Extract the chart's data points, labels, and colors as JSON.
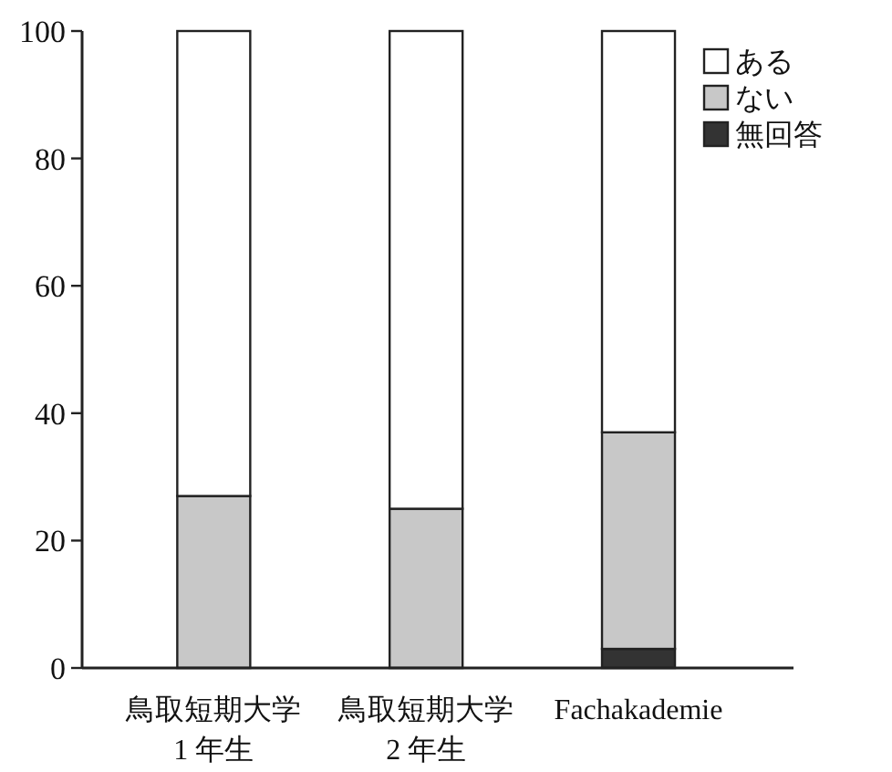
{
  "chart_data": {
    "type": "bar",
    "stacked": true,
    "categories": [
      "鳥取短期大学 1 年生",
      "鳥取短期大学 2 年生",
      "Fachakademie"
    ],
    "series": [
      {
        "name": "無回答",
        "color": "#333333",
        "values": [
          0,
          0,
          3
        ]
      },
      {
        "name": "ない",
        "color": "#c8c8c8",
        "values": [
          27,
          25,
          34
        ]
      },
      {
        "name": "ある",
        "color": "#ffffff",
        "values": [
          73,
          75,
          63
        ]
      }
    ],
    "ylim": [
      0,
      100
    ],
    "yticks": [
      0,
      20,
      40,
      60,
      80,
      100
    ],
    "grid": false,
    "legend": "top right"
  }
}
